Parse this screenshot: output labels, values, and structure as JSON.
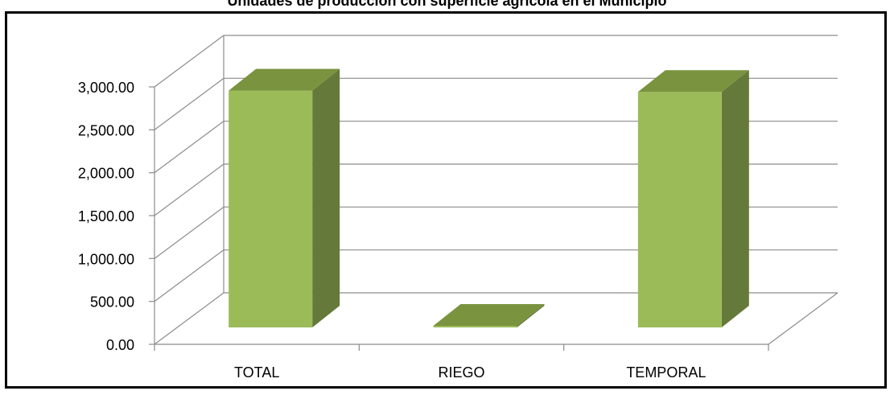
{
  "chart_data": {
    "type": "bar",
    "title": "Unidades de producción con superficie agrícola en el Municipio",
    "categories": [
      "TOTAL",
      "RIEGO",
      "TEMPORAL"
    ],
    "values": [
      2760,
      15,
      2745
    ],
    "ylim": [
      0,
      3000
    ],
    "yticks": [
      "0.00",
      "500.00",
      "1,000.00",
      "1,500.00",
      "2,000.00",
      "2,500.00",
      "3,000.00"
    ],
    "grid": true,
    "colors": {
      "front": "#9bbb59",
      "side": "#657a3a",
      "top": "#7a933f",
      "grid": "#8c8c8c"
    }
  }
}
